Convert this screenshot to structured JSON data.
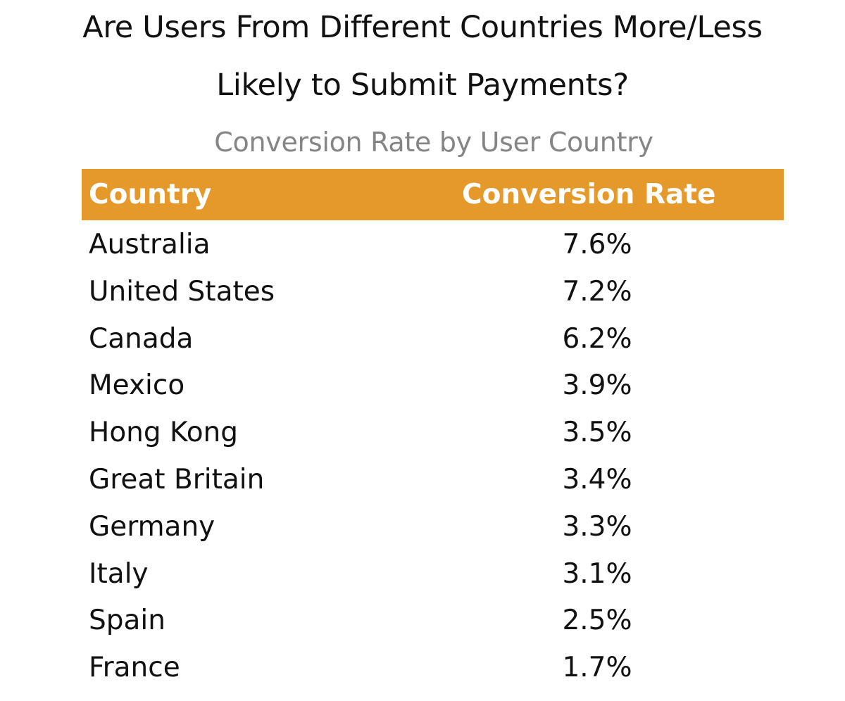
{
  "title_line1": "Are Users From Different Countries More/Less",
  "title_line2": "Likely to Submit Payments?",
  "subtitle": "Conversion Rate by User Country",
  "colors": {
    "header_bg": "#E5992A",
    "header_text": "#FFFFFF",
    "subtitle": "#858585"
  },
  "chart_data": {
    "type": "table",
    "columns": [
      "Country",
      "Conversion Rate"
    ],
    "rows": [
      [
        "Australia",
        "7.6%"
      ],
      [
        "United States",
        "7.2%"
      ],
      [
        "Canada",
        "6.2%"
      ],
      [
        "Mexico",
        "3.9%"
      ],
      [
        "Hong Kong",
        "3.5%"
      ],
      [
        "Great Britain",
        "3.4%"
      ],
      [
        "Germany",
        "3.3%"
      ],
      [
        "Italy",
        "3.1%"
      ],
      [
        "Spain",
        "2.5%"
      ],
      [
        "France",
        "1.7%"
      ]
    ]
  }
}
